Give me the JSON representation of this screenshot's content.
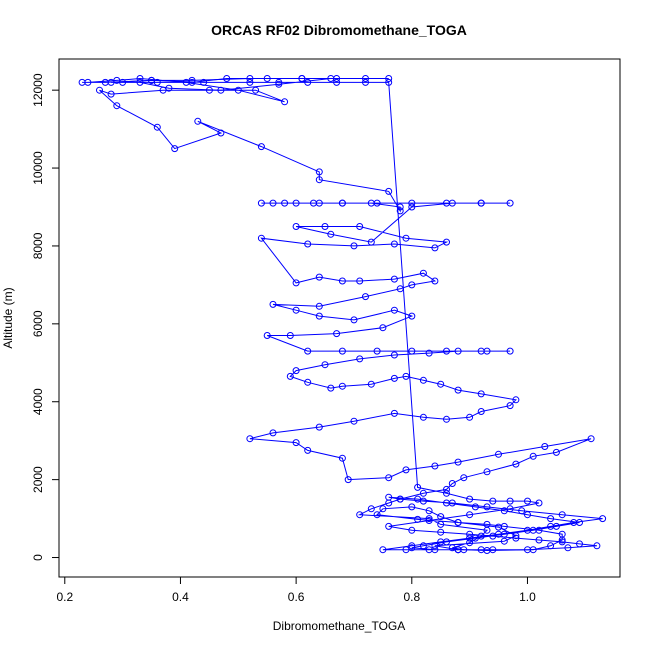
{
  "chart_data": {
    "type": "line",
    "title": "ORCAS RF02 Dibromomethane_TOGA",
    "xlabel": "Dibromomethane_TOGA",
    "ylabel": "Altitude (m)",
    "xlim": [
      0.19,
      1.16
    ],
    "ylim": [
      -500,
      12800
    ],
    "xticks": [
      0.2,
      0.4,
      0.6,
      0.8,
      1.0
    ],
    "xtick_labels": [
      "0.2",
      "0.4",
      "0.6",
      "0.8",
      "1.0"
    ],
    "yticks": [
      0,
      2000,
      4000,
      6000,
      8000,
      10000,
      12000
    ],
    "ytick_labels": [
      "0",
      "2000",
      "4000",
      "6000",
      "8000",
      "10000",
      "12000"
    ],
    "series_color": "#0000ff",
    "grid": false,
    "series": [
      {
        "name": "Dibromomethane_TOGA",
        "x": [
          0.88,
          0.84,
          0.96,
          0.98,
          0.95,
          0.88,
          0.85,
          0.83,
          0.8,
          0.75,
          0.74,
          0.81,
          0.88,
          0.93,
          0.96,
          1.02,
          1.06,
          1.06,
          1.04,
          1.01,
          0.93,
          0.89,
          0.87,
          0.9,
          0.92,
          0.93,
          0.85,
          0.83,
          0.71,
          0.73,
          0.76,
          0.78,
          0.82,
          0.86,
          0.87,
          0.89,
          0.93,
          0.98,
          1.01,
          1.05,
          1.11,
          1.03,
          0.95,
          0.88,
          0.84,
          0.79,
          0.76,
          0.69,
          0.68,
          0.62,
          0.6,
          0.52,
          0.56,
          0.64,
          0.7,
          0.77,
          0.82,
          0.86,
          0.9,
          0.92,
          0.97,
          0.98,
          0.92,
          0.88,
          0.85,
          0.82,
          0.79,
          0.77,
          0.73,
          0.68,
          0.66,
          0.62,
          0.59,
          0.6,
          0.65,
          0.71,
          0.77,
          0.83,
          0.88,
          0.93,
          0.97,
          0.92,
          0.86,
          0.8,
          0.74,
          0.68,
          0.62,
          0.55,
          0.59,
          0.67,
          0.75,
          0.8,
          0.77,
          0.7,
          0.64,
          0.6,
          0.56,
          0.64,
          0.72,
          0.78,
          0.8,
          0.84,
          0.82,
          0.77,
          0.71,
          0.68,
          0.64,
          0.6,
          0.54,
          0.62,
          0.7,
          0.77,
          0.84,
          0.86,
          0.79,
          0.71,
          0.65,
          0.6,
          0.66,
          0.73,
          0.8,
          0.87,
          0.92,
          0.97,
          0.92,
          0.86,
          0.8,
          0.74,
          0.68,
          0.64,
          0.6,
          0.56,
          0.54,
          0.58,
          0.63,
          0.68,
          0.73,
          0.78,
          0.78,
          0.76,
          0.64,
          0.64,
          0.54,
          0.43,
          0.47,
          0.39,
          0.36,
          0.29,
          0.26,
          0.28,
          0.37,
          0.45,
          0.53,
          0.58,
          0.5,
          0.41,
          0.33,
          0.29,
          0.24,
          0.23,
          0.27,
          0.35,
          0.42,
          0.52,
          0.61,
          0.67,
          0.72,
          0.76
        ]
      },
      {
        "name": "Dibromomethane_TOGA",
        "x": [
          0.3,
          0.36,
          0.42,
          0.48,
          0.55,
          0.61,
          0.66,
          0.57,
          0.47,
          0.38,
          0.33,
          0.28,
          0.35,
          0.44,
          0.52,
          0.57,
          0.62,
          0.67,
          0.72,
          0.76,
          0.81,
          0.86,
          0.9,
          0.94,
          0.97,
          1.0,
          1.02,
          0.97,
          0.9,
          0.83,
          0.76,
          0.8,
          0.85,
          0.9,
          0.94,
          0.98,
          1.02,
          1.06,
          1.09,
          1.12,
          1.07,
          1.0,
          0.94,
          0.88,
          0.83,
          0.79,
          0.75,
          0.8,
          0.85,
          0.9,
          0.95,
          1.0,
          1.04,
          1.08,
          1.13,
          1.06,
          0.99,
          0.93,
          0.87,
          0.82,
          0.78,
          0.76,
          0.81,
          0.86,
          0.91,
          0.96,
          1.0,
          1.04,
          1.09,
          1.05,
          1.01,
          0.96,
          0.91,
          0.86,
          0.82,
          0.8,
          0.84,
          0.88,
          0.92
        ]
      }
    ]
  },
  "chart_data_y": {
    "series_y": [
      [
        200,
        300,
        420,
        560,
        780,
        900,
        1050,
        1200,
        1300,
        1250,
        1100,
        980,
        900,
        850,
        800,
        700,
        600,
        450,
        300,
        200,
        180,
        200,
        250,
        380,
        550,
        700,
        850,
        1000,
        1100,
        1250,
        1400,
        1500,
        1650,
        1750,
        1900,
        2050,
        2200,
        2400,
        2600,
        2700,
        3050,
        2850,
        2650,
        2450,
        2350,
        2250,
        2050,
        2000,
        2550,
        2750,
        2950,
        3050,
        3200,
        3350,
        3500,
        3700,
        3600,
        3550,
        3600,
        3750,
        3900,
        4050,
        4200,
        4300,
        4450,
        4550,
        4650,
        4600,
        4450,
        4400,
        4350,
        4500,
        4650,
        4800,
        4950,
        5100,
        5200,
        5250,
        5300,
        5300,
        5300,
        5300,
        5300,
        5300,
        5300,
        5300,
        5300,
        5700,
        5700,
        5750,
        5900,
        6200,
        6350,
        6100,
        6200,
        6350,
        6500,
        6450,
        6700,
        6900,
        7000,
        7100,
        7300,
        7150,
        7100,
        7100,
        7200,
        7050,
        8200,
        8050,
        8000,
        8050,
        7950,
        8100,
        8200,
        8500,
        8500,
        8500,
        8300,
        8100,
        9000,
        9100,
        9100,
        9100,
        9100,
        9100,
        9100,
        9100,
        9100,
        9100,
        9100,
        9100,
        9100,
        9100,
        9100,
        9100,
        9100,
        9000,
        8900,
        9400,
        9700,
        9900,
        10550,
        11200,
        10900,
        10500,
        11050,
        11600,
        12000,
        11900,
        12000,
        12000,
        12000,
        11700,
        12000,
        12200,
        12300,
        12250,
        12200,
        12200,
        12200,
        12250,
        12250,
        12300,
        12300,
        12300,
        12300,
        12300
      ],
      [
        12200,
        12200,
        12200,
        12300,
        12300,
        12300,
        12300,
        12150,
        12000,
        12050,
        12200,
        12200,
        12250,
        12200,
        12200,
        12200,
        12200,
        12200,
        12200,
        12200,
        1800,
        1650,
        1500,
        1450,
        1450,
        1450,
        1400,
        1250,
        1100,
        950,
        800,
        700,
        650,
        600,
        550,
        500,
        450,
        400,
        350,
        300,
        250,
        200,
        200,
        200,
        200,
        200,
        200,
        300,
        400,
        500,
        600,
        700,
        800,
        900,
        1000,
        1100,
        1200,
        1300,
        1400,
        1450,
        1500,
        1550,
        1500,
        1400,
        1300,
        1200,
        1100,
        1000,
        900,
        800,
        700,
        600,
        500,
        400,
        300,
        250,
        200,
        200,
        200
      ]
    ]
  }
}
